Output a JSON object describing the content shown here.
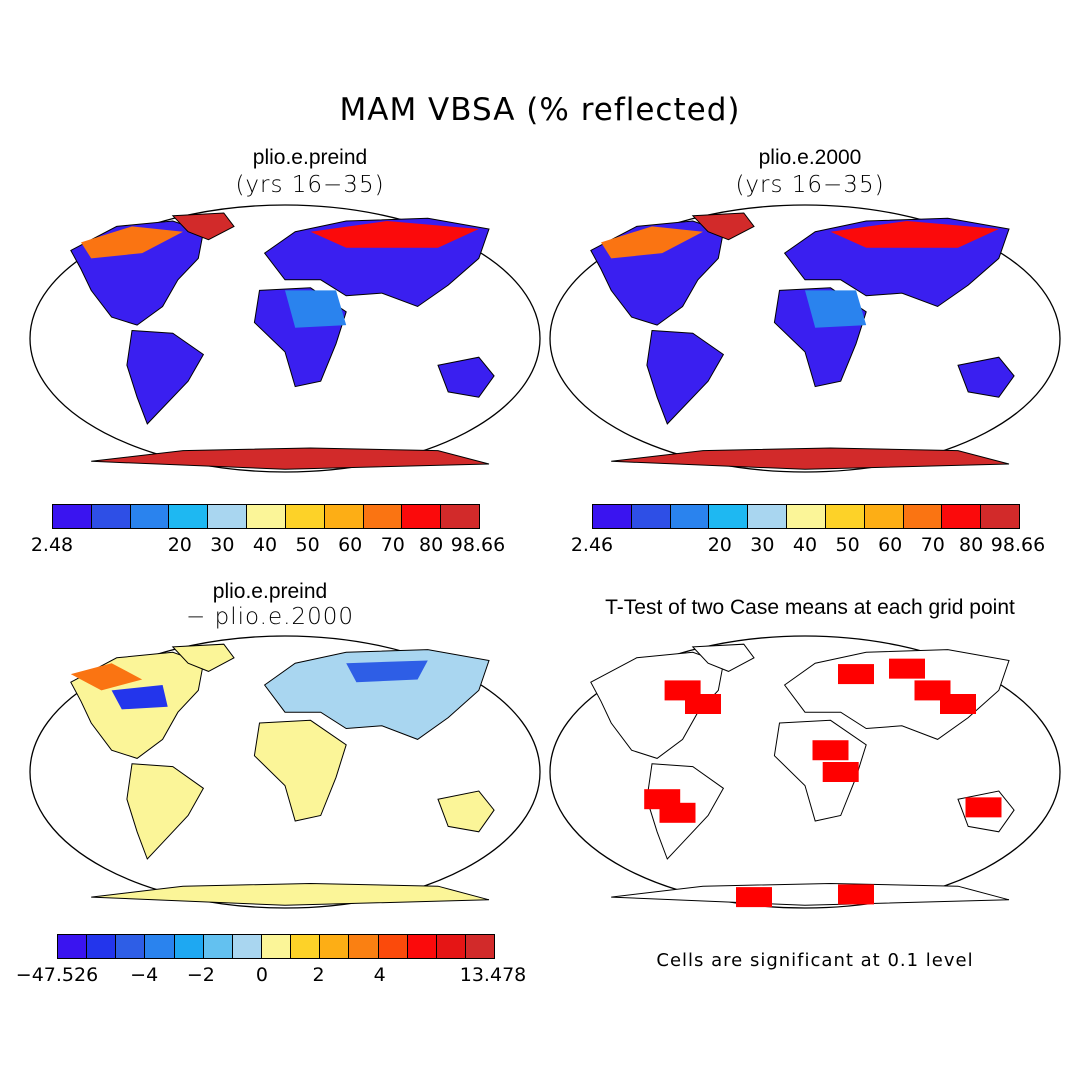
{
  "main_title": "MAM VBSA (% reflected)",
  "panels": [
    {
      "title": "plio.e.preind",
      "subtitle": "(yrs 16−35)"
    },
    {
      "title": "plio.e.2000",
      "subtitle": "(yrs 16−35)"
    },
    {
      "title": "plio.e.preind",
      "subtitle": "− plio.e.2000"
    },
    {
      "title": "T-Test of two Case means at each grid point",
      "subtitle": ""
    }
  ],
  "colorbars": {
    "abs1": {
      "colors": [
        "#3a14f0",
        "#2e4fe6",
        "#2a83ee",
        "#1eb8f2",
        "#a9d6f0",
        "#fbf598",
        "#fdd228",
        "#fdae15",
        "#fa7412",
        "#fb0a0b",
        "#d22a2a"
      ],
      "labels": [
        "2.48",
        "20",
        "30",
        "40",
        "50",
        "60",
        "70",
        "80",
        "98.66"
      ]
    },
    "abs2": {
      "colors": [
        "#3a14f0",
        "#2e4fe6",
        "#2a83ee",
        "#1eb8f2",
        "#a9d6f0",
        "#fbf598",
        "#fdd228",
        "#fdae15",
        "#fa7412",
        "#fb0a0b",
        "#d22a2a"
      ],
      "labels": [
        "2.46",
        "20",
        "30",
        "40",
        "50",
        "60",
        "70",
        "80",
        "98.66"
      ]
    },
    "diff": {
      "colors": [
        "#3a14f0",
        "#2335ec",
        "#2e5ee6",
        "#2a83ee",
        "#1ea8f2",
        "#63c1f0",
        "#a9d6f0",
        "#fbf598",
        "#fdd228",
        "#fdae15",
        "#fa8012",
        "#fb4a0b",
        "#fb0a0b",
        "#e51515",
        "#d22a2a"
      ],
      "labels": [
        "−47.526",
        "−4",
        "−2",
        "0",
        "2",
        "4",
        "13.478"
      ]
    }
  },
  "significance_note": "Cells are significant at 0.1 level",
  "map_colors": {
    "land_abs": "#3a1ff0",
    "ice": "#d22a2a",
    "significant": "#ff0000",
    "diff_pos": "#fbf598",
    "diff_neg": "#a9d6f0"
  }
}
